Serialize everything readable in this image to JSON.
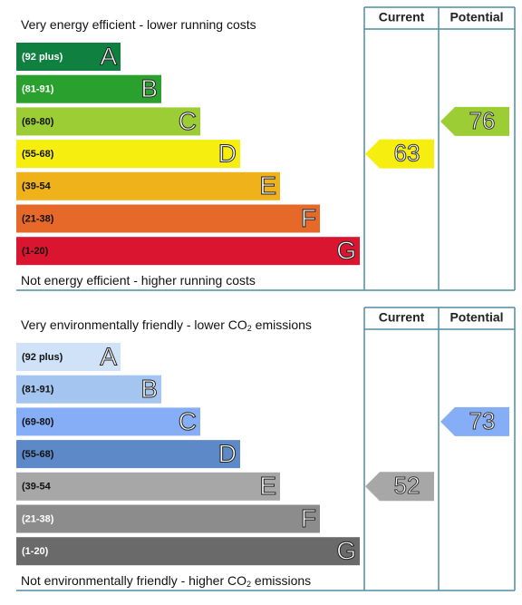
{
  "chart_data": [
    {
      "type": "rating",
      "columns": [
        "Current",
        "Potential"
      ],
      "top_label": {
        "text": "Very energy efficient - lower running costs"
      },
      "bottom_label": {
        "text": "Not energy efficient - higher running costs"
      },
      "bands": [
        {
          "range": "(92 plus)",
          "letter": "A",
          "color": "#0f8040",
          "text_color": "#ffffff"
        },
        {
          "range": "(81-91)",
          "letter": "B",
          "color": "#2aa12f",
          "text_color": "#ffffff"
        },
        {
          "range": "(69-80)",
          "letter": "C",
          "color": "#9ccd35",
          "text_color": "#111111"
        },
        {
          "range": "(55-68)",
          "letter": "D",
          "color": "#f5ee0f",
          "text_color": "#111111"
        },
        {
          "range": "(39-54",
          "letter": "E",
          "color": "#f0b21a",
          "text_color": "#111111"
        },
        {
          "range": "(21-38)",
          "letter": "F",
          "color": "#e6692a",
          "text_color": "#111111"
        },
        {
          "range": "(1-20)",
          "letter": "G",
          "color": "#da1530",
          "text_color": "#111111"
        }
      ],
      "current": 63,
      "potential": 76
    },
    {
      "type": "rating",
      "columns": [
        "Current",
        "Potential"
      ],
      "top_label": {
        "text": "Very environmentally friendly - lower CO",
        "sub": "2",
        "after": " emissions"
      },
      "bottom_label": {
        "text": "Not environmentally friendly - higher CO",
        "sub": "2",
        "after": " emissions"
      },
      "bands": [
        {
          "range": "(92 plus)",
          "letter": "A",
          "color": "#cfe2f7",
          "text_color": "#111111"
        },
        {
          "range": "(81-91)",
          "letter": "B",
          "color": "#a3c5f0",
          "text_color": "#111111"
        },
        {
          "range": "(69-80)",
          "letter": "C",
          "color": "#86aef7",
          "text_color": "#111111"
        },
        {
          "range": "(55-68)",
          "letter": "D",
          "color": "#5d89c9",
          "text_color": "#111111"
        },
        {
          "range": "(39-54",
          "letter": "E",
          "color": "#a7a7a7",
          "text_color": "#111111"
        },
        {
          "range": "(21-38)",
          "letter": "F",
          "color": "#8c8c8c",
          "text_color": "#ffffff"
        },
        {
          "range": "(1-20)",
          "letter": "G",
          "color": "#6a6a6a",
          "text_color": "#ffffff"
        }
      ],
      "current": 52,
      "potential": 73
    }
  ]
}
